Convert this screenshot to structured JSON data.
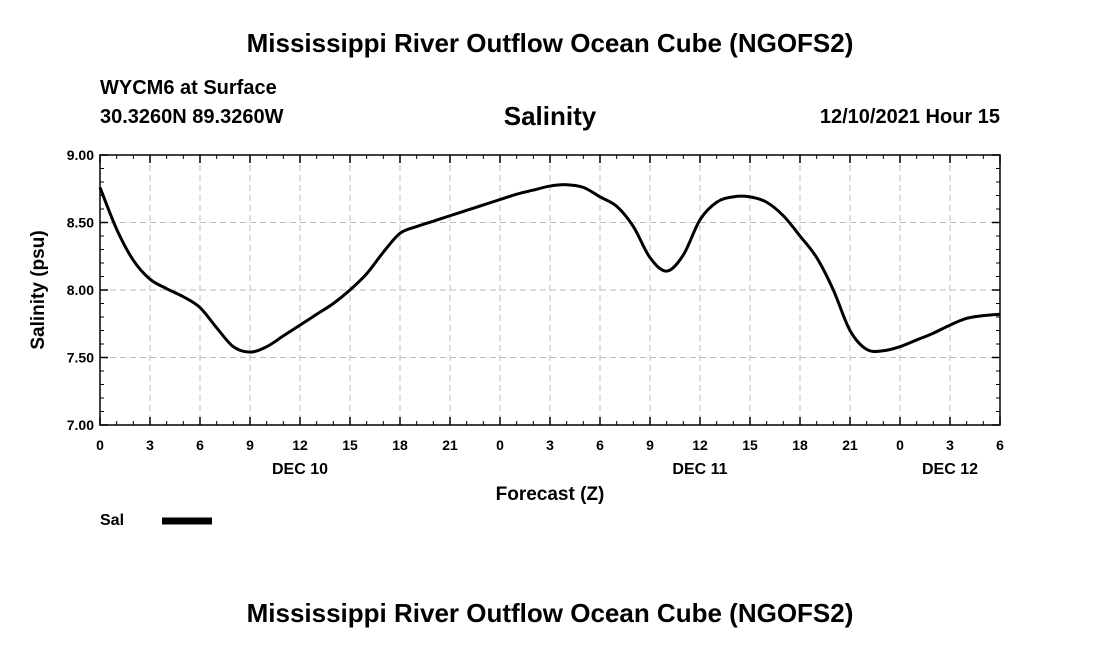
{
  "header": {
    "title": "Mississippi River Outflow Ocean Cube (NGOFS2)",
    "station": "WYCM6 at Surface",
    "coords": "30.3260N  89.3260W",
    "date": "12/10/2021 Hour 15",
    "footer_title": "Mississippi River Outflow Ocean Cube (NGOFS2)"
  },
  "chart_data": {
    "type": "line",
    "title": "Salinity",
    "xlabel": "Forecast (Z)",
    "ylabel": "Salinity (psu)",
    "xlim": [
      0,
      54
    ],
    "ylim": [
      7.0,
      9.0
    ],
    "grid": true,
    "x_tick_labels": [
      "0",
      "3",
      "6",
      "9",
      "12",
      "15",
      "18",
      "21",
      "0",
      "3",
      "6",
      "9",
      "12",
      "15",
      "18",
      "21",
      "0",
      "3",
      "6"
    ],
    "y_tick_labels": [
      "7.00",
      "7.50",
      "8.00",
      "8.50",
      "9.00"
    ],
    "day_labels": [
      {
        "label": "DEC 10",
        "hour": 12
      },
      {
        "label": "DEC 11",
        "hour": 36
      },
      {
        "label": "DEC 12",
        "hour": 51
      }
    ],
    "series": [
      {
        "name": "Sal",
        "x": [
          0,
          1,
          2,
          3,
          4,
          5,
          6,
          7,
          8,
          9,
          10,
          11,
          12,
          13,
          14,
          15,
          16,
          17,
          18,
          19,
          20,
          21,
          22,
          23,
          24,
          25,
          26,
          27,
          28,
          29,
          30,
          31,
          32,
          33,
          34,
          35,
          36,
          37,
          38,
          39,
          40,
          41,
          42,
          43,
          44,
          45,
          46,
          47,
          48,
          49,
          50,
          51,
          52,
          53,
          54
        ],
        "values": [
          8.76,
          8.45,
          8.22,
          8.08,
          8.01,
          7.95,
          7.87,
          7.72,
          7.58,
          7.54,
          7.58,
          7.66,
          7.74,
          7.82,
          7.9,
          8.0,
          8.12,
          8.28,
          8.42,
          8.47,
          8.51,
          8.55,
          8.59,
          8.63,
          8.67,
          8.71,
          8.74,
          8.77,
          8.78,
          8.76,
          8.69,
          8.62,
          8.47,
          8.24,
          8.14,
          8.26,
          8.52,
          8.65,
          8.69,
          8.69,
          8.65,
          8.55,
          8.4,
          8.24,
          8.0,
          7.7,
          7.56,
          7.55,
          7.58,
          7.63,
          7.68,
          7.74,
          7.79,
          7.81,
          7.82
        ]
      }
    ],
    "legend": [
      {
        "label": "Sal",
        "color": "#000000"
      }
    ]
  }
}
